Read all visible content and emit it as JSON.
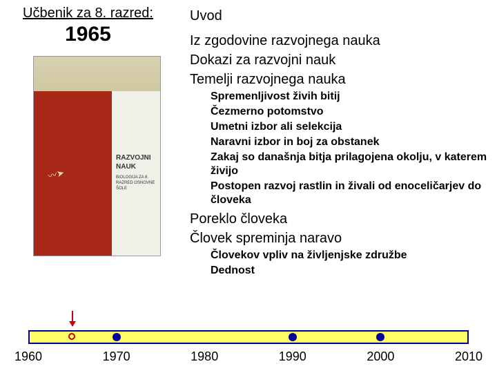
{
  "left": {
    "title": "Učbenik za 8. razred:",
    "year": "1965",
    "book_title1": "RAZVOJNI",
    "book_title2": "NAUK",
    "book_sub": "BIOLOGIJA ZA 8. RAZRED OSNOVNE ŠOLE"
  },
  "sections": {
    "s1": "Uvod",
    "s2": "Iz zgodovine razvojnega nauka",
    "s3": "Dokazi za razvojni nauk",
    "s4": "Temelji razvojnega nauka",
    "s5": "Poreklo človeka",
    "s6": "Človek spreminja naravo"
  },
  "subs1": {
    "a": "Spremenljivost živih bitij",
    "b": "Čezmerno potomstvo",
    "c": "Umetni izbor ali selekcija",
    "d": "Naravni izbor in boj za obstanek",
    "e": "Zakaj so današnja bitja prilagojena okolju, v katerem živijo",
    "f": "Postopen razvoj rastlin in živali od enoceličarjev do človeka"
  },
  "subs2": {
    "a": "Človekov vpliv na življenjske združbe",
    "b": "Dednost"
  },
  "timeline": {
    "start": 1960,
    "end": 2010,
    "labels": [
      "1960",
      "1970",
      "1980",
      "1990",
      "2000",
      "2010"
    ],
    "marker_year": 1965,
    "dots_solid": [
      1970,
      1990,
      2000
    ],
    "bar_color": "#ffff66",
    "border_color": "#000099",
    "dot_color": "#000099",
    "marker_color": "#cc0000"
  }
}
